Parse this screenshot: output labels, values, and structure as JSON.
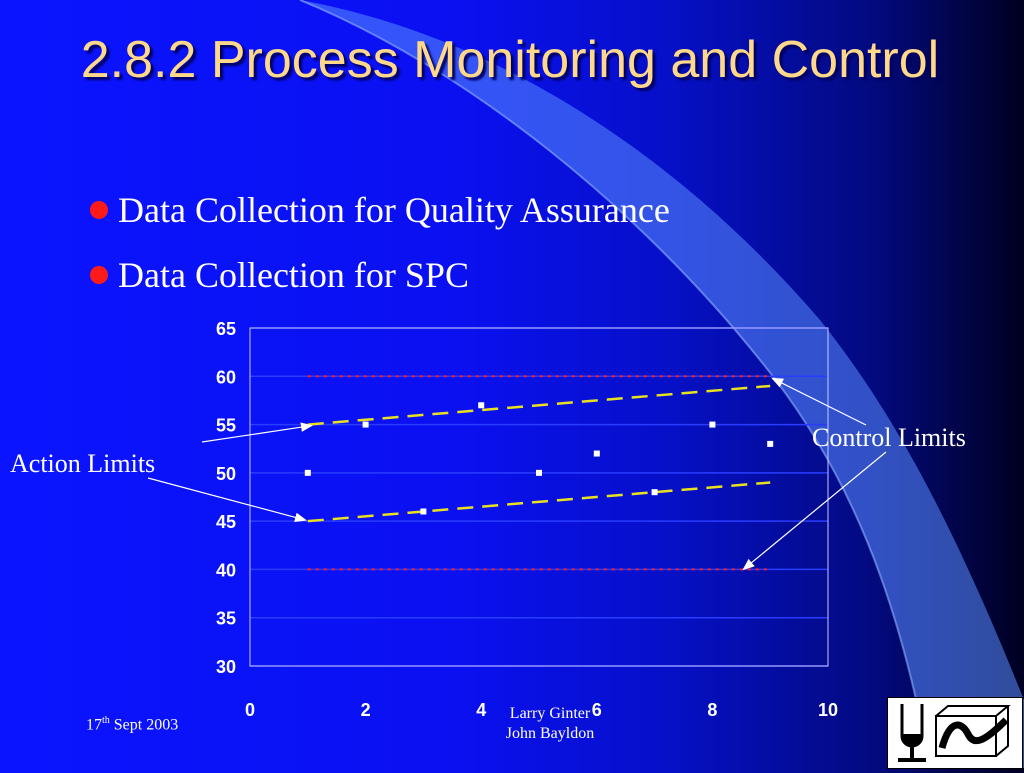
{
  "slide": {
    "title": "2.8.2  Process Monitoring and Control",
    "bullets": [
      "Data Collection for Quality Assurance",
      "Data Collection for SPC"
    ],
    "footer": {
      "date_day": "17",
      "date_suffix": "th",
      "date_rest": " Sept 2003",
      "author_1": "Larry Ginter",
      "author_2": "John Bayldon"
    },
    "logo_icon": "institution-logo-icon",
    "bullet_color": "#ff1a1a",
    "title_color": "#ffd88a"
  },
  "chart_data": {
    "type": "scatter",
    "title": "",
    "xlabel": "",
    "ylabel": "",
    "xlim": [
      0,
      10
    ],
    "ylim": [
      30,
      65
    ],
    "x_ticks": [
      0,
      2,
      4,
      6,
      8,
      10
    ],
    "y_ticks": [
      30,
      35,
      40,
      45,
      50,
      55,
      60,
      65
    ],
    "grid": "horizontal",
    "series": [
      {
        "x": [
          1,
          2,
          3,
          4,
          5,
          6,
          7,
          8,
          9
        ],
        "y": [
          50,
          55,
          46,
          57,
          50,
          52,
          48,
          55,
          53
        ]
      }
    ],
    "reference_lines": [
      {
        "kind": "action-limit-upper",
        "x": [
          1,
          9
        ],
        "y": [
          55,
          59
        ],
        "style": "dashed",
        "color": "#e8e020"
      },
      {
        "kind": "action-limit-lower",
        "x": [
          1,
          9
        ],
        "y": [
          45,
          49
        ],
        "style": "dashed",
        "color": "#e8e020"
      },
      {
        "kind": "control-limit-upper",
        "x": [
          1,
          9
        ],
        "y": [
          60,
          60
        ],
        "style": "dotted",
        "color": "#ff2020"
      },
      {
        "kind": "control-limit-lower",
        "x": [
          1,
          9
        ],
        "y": [
          40,
          40
        ],
        "style": "dotted",
        "color": "#ff2020"
      }
    ],
    "annotations": [
      {
        "text": "Action Limits",
        "targets": [
          [
            1,
            55
          ],
          [
            1,
            45
          ]
        ]
      },
      {
        "text": "Control Limits",
        "targets": [
          [
            9,
            59.9
          ],
          [
            8.5,
            40
          ]
        ]
      }
    ]
  }
}
